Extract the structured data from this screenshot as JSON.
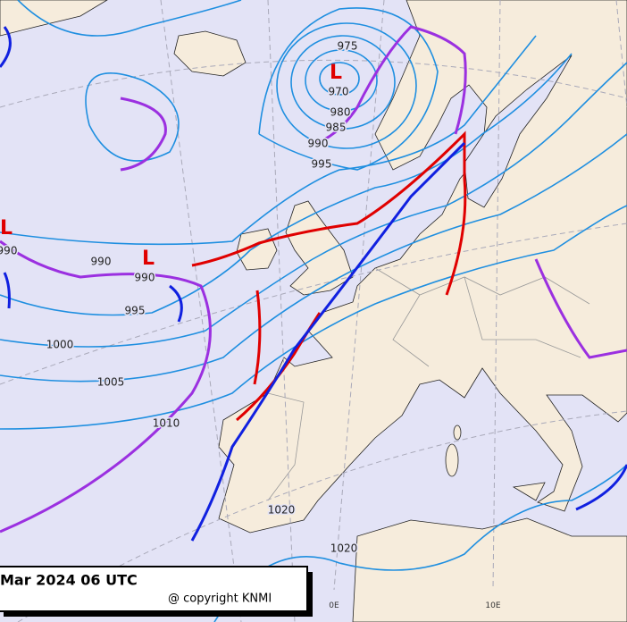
{
  "title": "Mar 2024 06 UTC",
  "copyright": "@ copyright KNMI",
  "longitude_labels": [
    "0E",
    "10E"
  ],
  "low_markers": [
    "L",
    "L",
    "L"
  ],
  "isobar_labels": [
    "975",
    "970",
    "980",
    "985",
    "990",
    "995",
    "990",
    "990",
    "990",
    "995",
    "1000",
    "1005",
    "1010",
    "1020",
    "1020"
  ]
}
